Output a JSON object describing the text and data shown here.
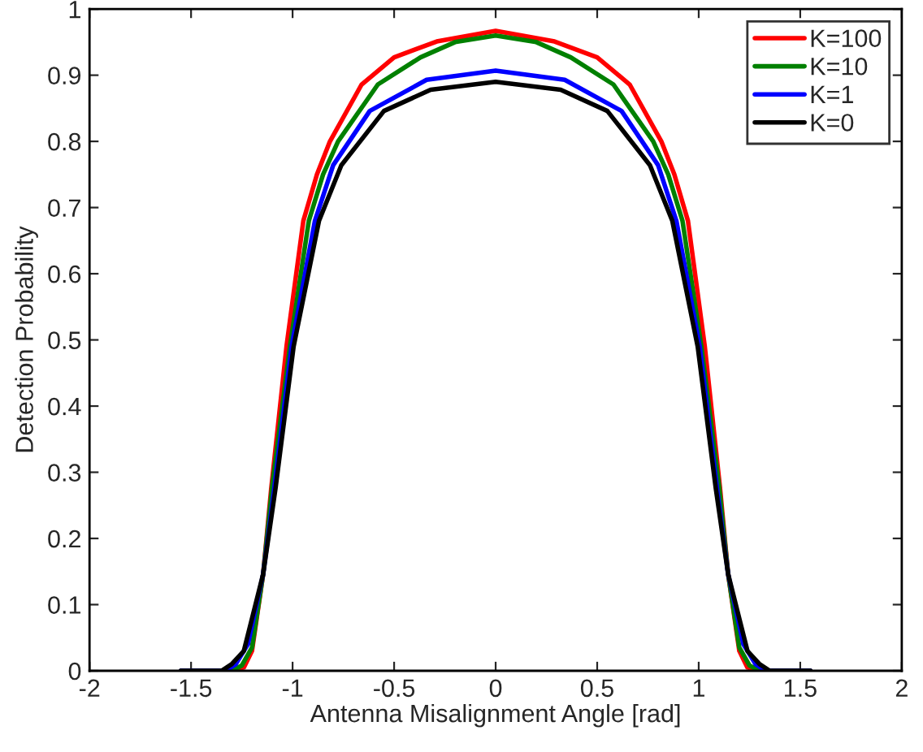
{
  "chart_data": {
    "type": "line",
    "xlabel": "Antenna Misalignment Angle [rad]",
    "ylabel": "Detection Probability",
    "xlim": [
      -2,
      2
    ],
    "ylim": [
      0,
      1
    ],
    "xticks": [
      -2,
      -1.5,
      -1,
      -0.5,
      0,
      0.5,
      1,
      1.5,
      2
    ],
    "yticks": [
      0,
      0.1,
      0.2,
      0.3,
      0.4,
      0.5,
      0.6,
      0.7,
      0.8,
      0.9,
      1
    ],
    "grid": false,
    "legend": "top right",
    "marker": "none",
    "line_style": "solid",
    "series": [
      {
        "name": "K=100",
        "color": "#ff0000",
        "x": [
          -1.55,
          -1.3,
          -1.24,
          -1.2,
          -1.145,
          -1.105,
          -1.03,
          -0.947,
          -0.88,
          -0.816,
          -0.66,
          -0.5,
          -0.29,
          0,
          0.29,
          0.5,
          0.66,
          0.816,
          0.88,
          0.947,
          1.03,
          1.105,
          1.145,
          1.2,
          1.24,
          1.3,
          1.55
        ],
        "values": [
          0,
          0,
          0.005,
          0.03,
          0.146,
          0.276,
          0.49,
          0.68,
          0.75,
          0.8,
          0.886,
          0.927,
          0.951,
          0.967,
          0.951,
          0.927,
          0.886,
          0.8,
          0.75,
          0.68,
          0.49,
          0.276,
          0.146,
          0.03,
          0.005,
          0,
          0
        ]
      },
      {
        "name": "K=10",
        "color": "#008000",
        "x": [
          -1.55,
          -1.3,
          -1.25,
          -1.2,
          -1.145,
          -1.1,
          -1.013,
          -0.92,
          -0.85,
          -0.776,
          -0.58,
          -0.37,
          -0.2,
          0,
          0.2,
          0.37,
          0.58,
          0.776,
          0.85,
          0.92,
          1.013,
          1.1,
          1.145,
          1.2,
          1.25,
          1.3,
          1.55
        ],
        "values": [
          0,
          0,
          0.008,
          0.035,
          0.146,
          0.28,
          0.49,
          0.68,
          0.75,
          0.8,
          0.886,
          0.927,
          0.95,
          0.96,
          0.95,
          0.927,
          0.886,
          0.8,
          0.75,
          0.68,
          0.49,
          0.28,
          0.146,
          0.035,
          0.008,
          0,
          0
        ]
      },
      {
        "name": "K=1",
        "color": "#0000ff",
        "x": [
          -1.55,
          -1.33,
          -1.28,
          -1.22,
          -1.145,
          -1.09,
          -1.005,
          -0.89,
          -0.8,
          -0.62,
          -0.34,
          0,
          0.34,
          0.62,
          0.8,
          0.89,
          1.005,
          1.09,
          1.145,
          1.22,
          1.28,
          1.33,
          1.55
        ],
        "values": [
          0,
          0,
          0.01,
          0.04,
          0.146,
          0.276,
          0.49,
          0.68,
          0.764,
          0.846,
          0.893,
          0.907,
          0.893,
          0.846,
          0.764,
          0.68,
          0.49,
          0.276,
          0.146,
          0.04,
          0.01,
          0,
          0
        ]
      },
      {
        "name": "K=0",
        "color": "#000000",
        "x": [
          -1.55,
          -1.35,
          -1.3,
          -1.24,
          -1.145,
          -1.084,
          -0.995,
          -0.87,
          -0.76,
          -0.55,
          -0.32,
          0,
          0.32,
          0.55,
          0.76,
          0.87,
          0.995,
          1.084,
          1.145,
          1.24,
          1.3,
          1.35,
          1.55
        ],
        "values": [
          0,
          0,
          0.01,
          0.03,
          0.146,
          0.276,
          0.49,
          0.68,
          0.764,
          0.846,
          0.878,
          0.89,
          0.878,
          0.846,
          0.764,
          0.68,
          0.49,
          0.276,
          0.146,
          0.03,
          0.01,
          0,
          0
        ]
      }
    ]
  }
}
